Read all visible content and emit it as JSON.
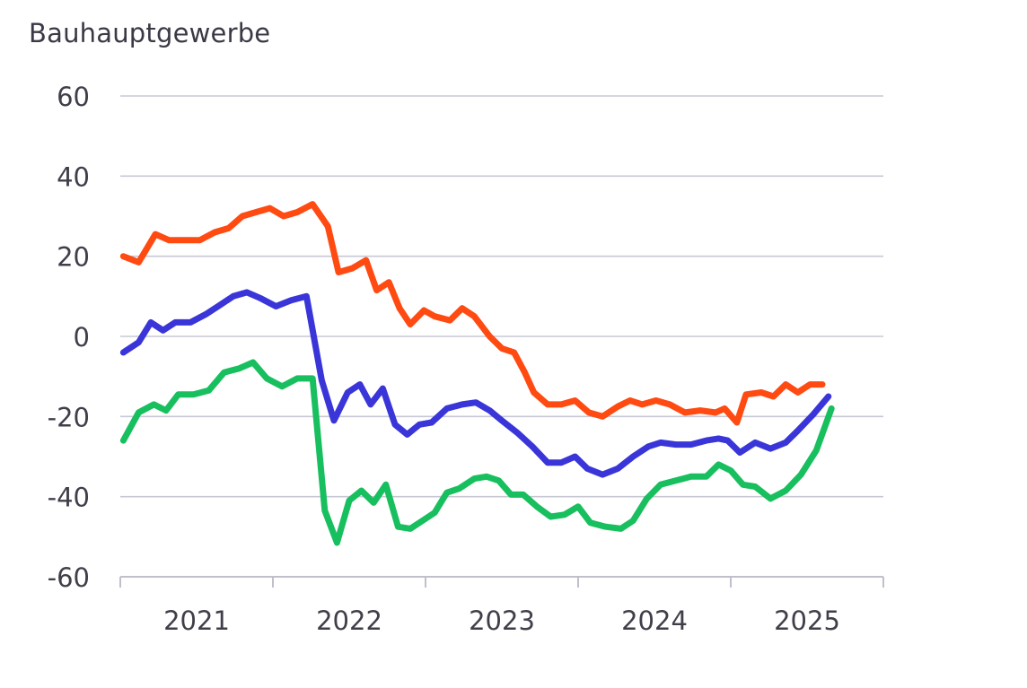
{
  "chart_data": {
    "type": "line",
    "title": "Bauhauptgewerbe",
    "xlabel": "",
    "ylabel": "",
    "ylim": [
      -60,
      60
    ],
    "yticks": [
      60,
      40,
      20,
      0,
      -20,
      -40,
      -60
    ],
    "xlim": [
      2020.6,
      2025.6
    ],
    "xticks": [
      {
        "label": "2021",
        "value": 2021.1
      },
      {
        "label": "2022",
        "value": 2022.1
      },
      {
        "label": "2023",
        "value": 2023.1
      },
      {
        "label": "2024",
        "value": 2024.1
      },
      {
        "label": "2025",
        "value": 2025.1
      }
    ],
    "grid": true,
    "legend": "none",
    "series": [
      {
        "color": "#ff4a12",
        "values": [
          [
            2020.62,
            20
          ],
          [
            2020.72,
            18.5
          ],
          [
            2020.83,
            25.5
          ],
          [
            2020.92,
            24
          ],
          [
            2021.04,
            24
          ],
          [
            2021.12,
            24
          ],
          [
            2021.22,
            26
          ],
          [
            2021.31,
            27
          ],
          [
            2021.4,
            30
          ],
          [
            2021.49,
            31
          ],
          [
            2021.58,
            32
          ],
          [
            2021.67,
            30
          ],
          [
            2021.76,
            31
          ],
          [
            2021.86,
            33
          ],
          [
            2021.96,
            27.5
          ],
          [
            2022.03,
            16
          ],
          [
            2022.12,
            17
          ],
          [
            2022.21,
            19
          ],
          [
            2022.28,
            11.5
          ],
          [
            2022.36,
            13.5
          ],
          [
            2022.43,
            7
          ],
          [
            2022.5,
            3
          ],
          [
            2022.59,
            6.5
          ],
          [
            2022.66,
            5
          ],
          [
            2022.76,
            4
          ],
          [
            2022.84,
            7
          ],
          [
            2022.92,
            5
          ],
          [
            2023.02,
            0
          ],
          [
            2023.1,
            -3
          ],
          [
            2023.18,
            -4
          ],
          [
            2023.25,
            -9
          ],
          [
            2023.31,
            -14
          ],
          [
            2023.4,
            -17
          ],
          [
            2023.49,
            -17
          ],
          [
            2023.58,
            -16
          ],
          [
            2023.67,
            -19
          ],
          [
            2023.76,
            -20
          ],
          [
            2023.86,
            -17.5
          ],
          [
            2023.94,
            -16
          ],
          [
            2024.02,
            -17
          ],
          [
            2024.11,
            -16
          ],
          [
            2024.2,
            -17
          ],
          [
            2024.3,
            -19
          ],
          [
            2024.4,
            -18.5
          ],
          [
            2024.5,
            -19
          ],
          [
            2024.56,
            -18
          ],
          [
            2024.64,
            -21.5
          ],
          [
            2024.7,
            -14.5
          ],
          [
            2024.8,
            -14
          ],
          [
            2024.88,
            -15
          ],
          [
            2024.96,
            -12
          ],
          [
            2025.04,
            -14
          ],
          [
            2025.12,
            -12
          ],
          [
            2025.2,
            -12
          ]
        ]
      },
      {
        "color": "#3a35d8",
        "values": [
          [
            2020.62,
            -4
          ],
          [
            2020.72,
            -1.5
          ],
          [
            2020.8,
            3.5
          ],
          [
            2020.88,
            1.5
          ],
          [
            2020.96,
            3.5
          ],
          [
            2021.06,
            3.5
          ],
          [
            2021.16,
            5.5
          ],
          [
            2021.26,
            8
          ],
          [
            2021.34,
            10
          ],
          [
            2021.43,
            11
          ],
          [
            2021.52,
            9.5
          ],
          [
            2021.62,
            7.5
          ],
          [
            2021.72,
            9
          ],
          [
            2021.82,
            10
          ],
          [
            2021.92,
            -11
          ],
          [
            2022.0,
            -21
          ],
          [
            2022.09,
            -14
          ],
          [
            2022.17,
            -12
          ],
          [
            2022.24,
            -17
          ],
          [
            2022.32,
            -13
          ],
          [
            2022.4,
            -22
          ],
          [
            2022.48,
            -24.5
          ],
          [
            2022.56,
            -22
          ],
          [
            2022.64,
            -21.5
          ],
          [
            2022.74,
            -18
          ],
          [
            2022.84,
            -17
          ],
          [
            2022.93,
            -16.5
          ],
          [
            2023.02,
            -18.5
          ],
          [
            2023.1,
            -21
          ],
          [
            2023.2,
            -24
          ],
          [
            2023.3,
            -27.5
          ],
          [
            2023.4,
            -31.5
          ],
          [
            2023.49,
            -31.5
          ],
          [
            2023.58,
            -30
          ],
          [
            2023.66,
            -33
          ],
          [
            2023.76,
            -34.5
          ],
          [
            2023.86,
            -33
          ],
          [
            2023.96,
            -30
          ],
          [
            2024.06,
            -27.5
          ],
          [
            2024.14,
            -26.5
          ],
          [
            2024.24,
            -27
          ],
          [
            2024.34,
            -27
          ],
          [
            2024.44,
            -26
          ],
          [
            2024.52,
            -25.5
          ],
          [
            2024.58,
            -26
          ],
          [
            2024.66,
            -29
          ],
          [
            2024.76,
            -26.5
          ],
          [
            2024.86,
            -28
          ],
          [
            2024.96,
            -26.5
          ],
          [
            2025.04,
            -23.5
          ],
          [
            2025.14,
            -19.5
          ],
          [
            2025.24,
            -15
          ]
        ]
      },
      {
        "color": "#18bf5e",
        "values": [
          [
            2020.62,
            -26
          ],
          [
            2020.72,
            -19
          ],
          [
            2020.82,
            -17
          ],
          [
            2020.9,
            -18.5
          ],
          [
            2020.98,
            -14.5
          ],
          [
            2021.08,
            -14.5
          ],
          [
            2021.18,
            -13.5
          ],
          [
            2021.28,
            -9
          ],
          [
            2021.38,
            -8
          ],
          [
            2021.47,
            -6.5
          ],
          [
            2021.56,
            -10.5
          ],
          [
            2021.66,
            -12.5
          ],
          [
            2021.76,
            -10.5
          ],
          [
            2021.86,
            -10.5
          ],
          [
            2021.94,
            -43.5
          ],
          [
            2022.02,
            -51.5
          ],
          [
            2022.1,
            -41
          ],
          [
            2022.18,
            -38.5
          ],
          [
            2022.26,
            -41.5
          ],
          [
            2022.34,
            -37
          ],
          [
            2022.42,
            -47.5
          ],
          [
            2022.5,
            -48
          ],
          [
            2022.58,
            -46
          ],
          [
            2022.66,
            -44
          ],
          [
            2022.74,
            -39
          ],
          [
            2022.82,
            -38
          ],
          [
            2022.92,
            -35.5
          ],
          [
            2023.0,
            -35
          ],
          [
            2023.08,
            -36
          ],
          [
            2023.16,
            -39.5
          ],
          [
            2023.24,
            -39.5
          ],
          [
            2023.33,
            -42.5
          ],
          [
            2023.42,
            -45
          ],
          [
            2023.51,
            -44.5
          ],
          [
            2023.6,
            -42.5
          ],
          [
            2023.68,
            -46.5
          ],
          [
            2023.78,
            -47.5
          ],
          [
            2023.88,
            -48
          ],
          [
            2023.96,
            -46
          ],
          [
            2024.05,
            -40.5
          ],
          [
            2024.14,
            -37
          ],
          [
            2024.24,
            -36
          ],
          [
            2024.34,
            -35
          ],
          [
            2024.44,
            -35
          ],
          [
            2024.52,
            -32
          ],
          [
            2024.6,
            -33.5
          ],
          [
            2024.68,
            -37
          ],
          [
            2024.76,
            -37.5
          ],
          [
            2024.86,
            -40.5
          ],
          [
            2024.96,
            -38.5
          ],
          [
            2025.06,
            -34.5
          ],
          [
            2025.16,
            -28.5
          ],
          [
            2025.26,
            -18
          ]
        ]
      }
    ]
  }
}
